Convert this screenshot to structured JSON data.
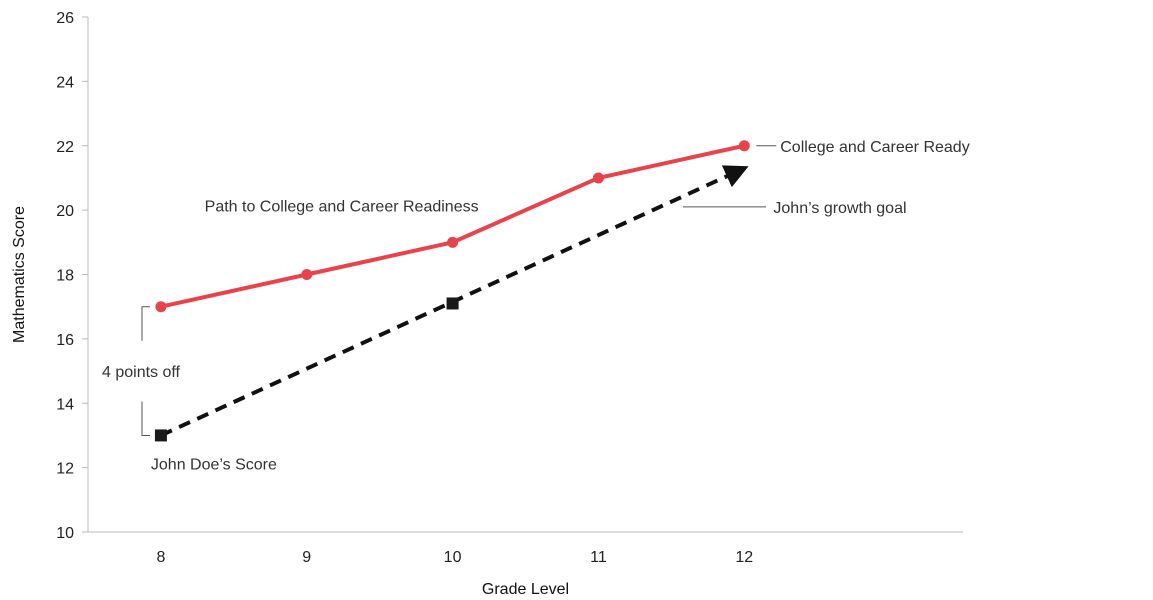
{
  "chart_data": {
    "type": "line",
    "xlabel": "Grade Level",
    "ylabel": "Mathematics Score",
    "xlim": [
      7.5,
      13.5
    ],
    "ylim": [
      10,
      26
    ],
    "x_ticks": [
      8,
      9,
      10,
      11,
      12
    ],
    "y_ticks": [
      10,
      12,
      14,
      16,
      18,
      20,
      22,
      24,
      26
    ],
    "grid": false,
    "series": [
      {
        "name": "Path to College and Career Readiness",
        "style": "solid",
        "color": "#e8434a",
        "x": [
          8,
          9,
          10,
          11,
          12
        ],
        "y": [
          17,
          18,
          19,
          21,
          22
        ]
      },
      {
        "style": "dashed",
        "color": "#111111",
        "x": [
          8,
          10,
          12
        ],
        "y": [
          13,
          17.1,
          21.3
        ],
        "arrow_end": true
      }
    ],
    "annotations": {
      "ccr_label": "College and Career Ready",
      "growth_goal_label": "John’s growth goal",
      "gap_label": "4 points off",
      "score_label": "John Doe’s Score"
    }
  }
}
